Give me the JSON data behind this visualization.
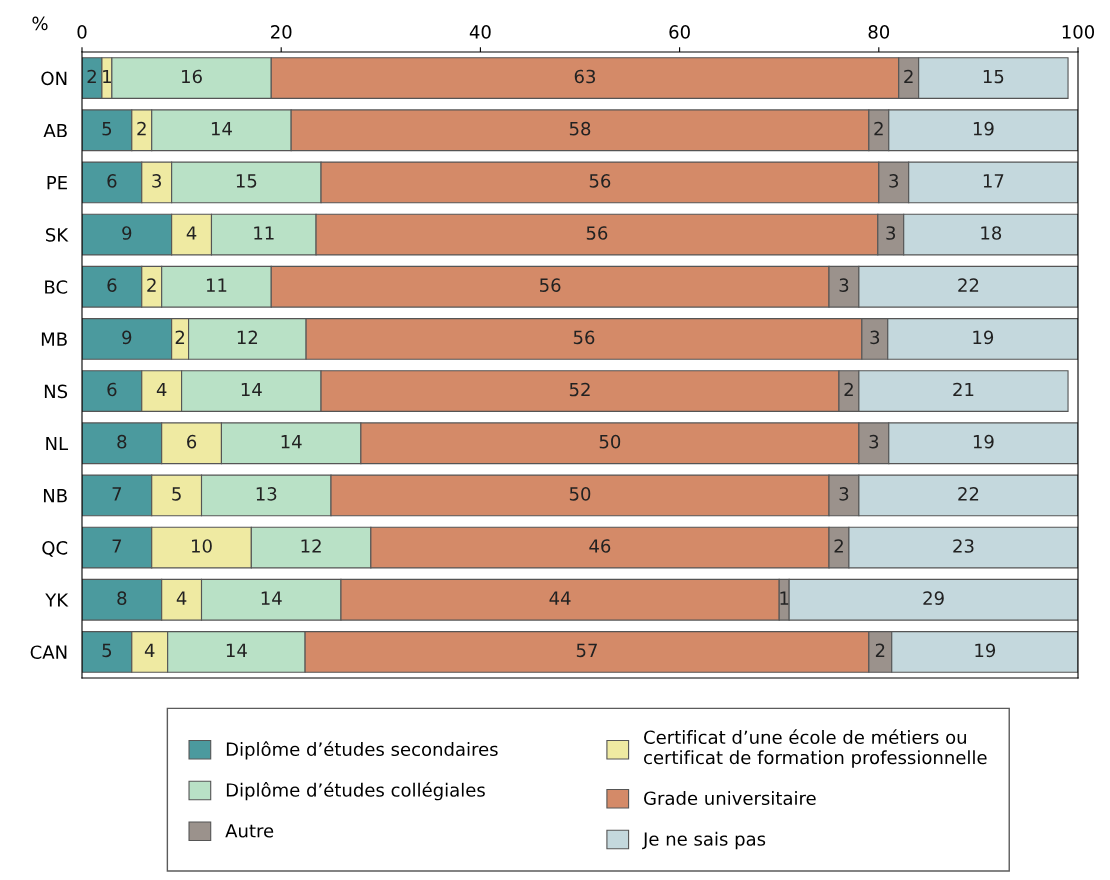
{
  "chart_data": {
    "type": "bar",
    "orientation": "horizontal",
    "stacked": true,
    "xlabel": "%",
    "categories": [
      "ON",
      "AB",
      "PE",
      "SK",
      "BC",
      "MB",
      "NS",
      "NL",
      "NB",
      "QC",
      "YK",
      "CAN"
    ],
    "series": [
      {
        "name": "Diplôme d’études secondaires",
        "color": "#4b9a9e",
        "values": [
          2,
          5,
          6,
          9,
          6,
          9,
          6,
          8,
          7,
          7,
          8,
          5
        ],
        "value_labels": [
          "2",
          "5",
          "6",
          "9",
          "6",
          "9",
          "6",
          "8",
          "7",
          "7",
          "8",
          "5"
        ]
      },
      {
        "name": "Certificat d’une école de métiers ou\ncertificat de formation professionnelle",
        "color": "#efeaa2",
        "values": [
          1,
          2,
          3,
          4,
          2,
          1.7,
          4,
          6,
          5,
          10,
          4,
          3.6
        ],
        "value_labels": [
          "1",
          "2",
          "3",
          "4",
          "2",
          "2",
          "4",
          "6",
          "5",
          "10",
          "4",
          "4"
        ]
      },
      {
        "name": "Diplôme d’études collégiales",
        "color": "#b9e1c6",
        "values": [
          16,
          14,
          15,
          10.5,
          11,
          11.8,
          14,
          14,
          13,
          12,
          14,
          13.8
        ],
        "value_labels": [
          "16",
          "14",
          "15",
          "11",
          "11",
          "12",
          "14",
          "14",
          "13",
          "12",
          "14",
          "14"
        ]
      },
      {
        "name": "Grade universitaire",
        "color": "#d48a68",
        "values": [
          63,
          58,
          56,
          56.4,
          56,
          55.8,
          52,
          50,
          50,
          46,
          44,
          56.6
        ],
        "value_labels": [
          "63",
          "58",
          "56",
          "56",
          "56",
          "56",
          "52",
          "50",
          "50",
          "46",
          "44",
          "57"
        ]
      },
      {
        "name": "Autre",
        "color": "#9b928c",
        "values": [
          2,
          2,
          3,
          2.6,
          3,
          2.6,
          2,
          3,
          3,
          2,
          1,
          2.3
        ],
        "value_labels": [
          "2",
          "2",
          "3",
          "3",
          "3",
          "3",
          "2",
          "3",
          "3",
          "2",
          "1",
          "2"
        ]
      },
      {
        "name": "Je ne sais pas",
        "color": "#c4d8dd",
        "values": [
          15,
          19,
          17,
          17.5,
          22,
          19.1,
          21,
          19,
          22,
          23,
          29,
          18.7
        ],
        "value_labels": [
          "15",
          "19",
          "17",
          "18",
          "22",
          "19",
          "21",
          "19",
          "22",
          "23",
          "29",
          "19"
        ]
      }
    ],
    "xlim": [
      0,
      100
    ],
    "xticks": [
      0,
      20,
      40,
      60,
      80,
      100
    ],
    "grid": false,
    "legend": "bottom"
  }
}
